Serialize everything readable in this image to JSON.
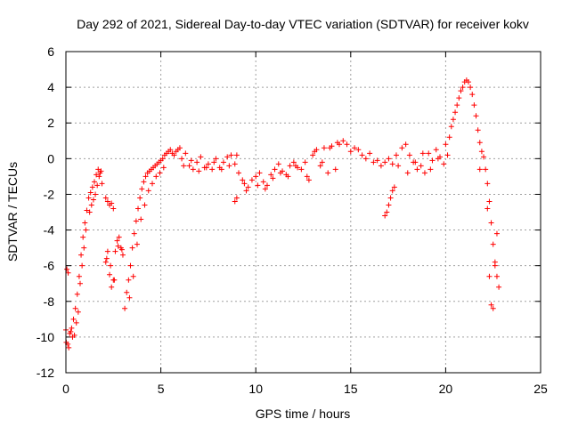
{
  "chart_data": {
    "type": "scatter",
    "title": "Day 292 of 2021, Sidereal Day-to-day VTEC variation (SDTVAR) for receiver kokv",
    "xlabel": "GPS time / hours",
    "ylabel": "SDTVAR / TECUs",
    "xlim": [
      0,
      25
    ],
    "ylim": [
      -12,
      6
    ],
    "xticks": [
      0,
      5,
      10,
      15,
      20,
      25
    ],
    "yticks": [
      -12,
      -10,
      -8,
      -6,
      -4,
      -2,
      0,
      2,
      4,
      6
    ],
    "grid": true,
    "marker": "plus",
    "series": [
      {
        "name": "SDTVAR",
        "color": "#ff0000",
        "x": [
          0.0,
          0.1,
          0.2,
          0.3,
          0.4,
          0.5,
          0.6,
          0.7,
          0.8,
          0.9,
          1.0,
          1.1,
          1.2,
          1.3,
          1.4,
          1.5,
          1.6,
          1.7,
          1.8,
          1.9,
          0.05,
          0.15,
          0.45,
          0.55,
          0.65,
          0.95,
          1.05,
          1.35,
          1.55,
          1.75,
          0.35,
          0.75,
          0.25,
          0.85,
          1.25,
          1.45,
          1.65,
          1.85,
          0.02,
          0.12,
          2.1,
          2.2,
          2.3,
          2.4,
          2.5,
          2.1,
          2.2,
          2.3,
          2.4,
          2.5,
          2.6,
          2.7,
          2.8,
          2.9,
          3.0,
          2.15,
          2.35,
          2.55,
          2.75,
          2.95,
          3.1,
          3.2,
          3.3,
          3.4,
          3.5,
          3.6,
          3.7,
          3.8,
          3.9,
          4.0,
          4.1,
          4.2,
          4.3,
          4.4,
          4.5,
          4.6,
          4.7,
          4.8,
          4.9,
          5.0,
          5.1,
          5.2,
          5.3,
          5.4,
          5.5,
          5.6,
          5.7,
          5.8,
          5.9,
          6.0,
          3.35,
          3.55,
          3.75,
          3.95,
          4.15,
          4.35,
          4.55,
          4.75,
          4.95,
          5.15,
          6.1,
          6.3,
          6.5,
          6.7,
          6.9,
          7.1,
          7.3,
          7.5,
          7.7,
          7.9,
          8.1,
          8.3,
          8.5,
          8.7,
          8.9,
          9.1,
          9.3,
          6.2,
          6.6,
          7.0,
          7.4,
          7.8,
          8.2,
          8.6,
          9.0,
          9.4,
          9.6,
          9.8,
          10.0,
          10.2,
          10.4,
          10.6,
          10.8,
          11.0,
          11.2,
          11.4,
          11.6,
          11.8,
          12.0,
          12.2,
          8.9,
          9.0,
          9.5,
          10.1,
          10.5,
          10.9,
          11.3,
          11.7,
          12.1,
          12.4,
          12.6,
          12.8,
          13.0,
          13.2,
          13.4,
          13.6,
          13.8,
          14.0,
          14.2,
          14.4,
          12.7,
          13.1,
          13.5,
          13.9,
          14.3,
          14.6,
          14.8,
          15.0,
          15.2,
          15.4,
          15.6,
          15.8,
          16.0,
          16.2,
          16.4,
          16.6,
          16.8,
          17.0,
          17.2,
          17.4,
          16.8,
          16.9,
          17.0,
          17.1,
          17.2,
          17.3,
          17.5,
          17.7,
          17.9,
          18.1,
          18.3,
          18.5,
          18.7,
          18.9,
          19.1,
          19.3,
          19.5,
          19.7,
          19.9,
          20.1,
          18.0,
          18.4,
          18.8,
          19.2,
          19.6,
          20.0,
          20.2,
          20.3,
          20.4,
          20.5,
          20.6,
          20.7,
          20.8,
          20.9,
          21.0,
          21.1,
          21.2,
          21.3,
          21.4,
          21.5,
          21.6,
          21.7,
          21.8,
          21.9,
          22.0,
          22.1,
          22.2,
          22.3,
          22.4,
          22.5,
          22.6,
          22.7,
          22.8,
          22.4,
          22.5,
          22.6,
          22.7,
          22.3,
          22.2,
          21.8
        ],
        "y": [
          -9.6,
          -10.4,
          -9.8,
          -9.5,
          -9.0,
          -8.4,
          -7.6,
          -6.6,
          -5.4,
          -4.4,
          -3.6,
          -2.9,
          -2.2,
          -1.9,
          -1.6,
          -1.3,
          -0.9,
          -0.6,
          -0.8,
          -1.4,
          -6.2,
          -10.6,
          -9.9,
          -9.2,
          -8.6,
          -5.0,
          -4.0,
          -2.6,
          -2.0,
          -1.0,
          -10.0,
          -7.0,
          -9.7,
          -6.0,
          -3.0,
          -2.3,
          -1.5,
          -0.7,
          -10.3,
          -6.4,
          -5.8,
          -5.2,
          -6.5,
          -7.2,
          -6.8,
          -2.2,
          -2.4,
          -2.6,
          -2.5,
          -2.8,
          -5.2,
          -4.6,
          -4.4,
          -5.0,
          -5.4,
          -5.6,
          -6.0,
          -6.8,
          -4.9,
          -5.1,
          -8.4,
          -7.5,
          -6.8,
          -6.0,
          -5.0,
          -4.2,
          -3.5,
          -2.8,
          -2.2,
          -1.7,
          -1.3,
          -1.0,
          -0.8,
          -0.7,
          -0.6,
          -0.5,
          -0.4,
          -0.3,
          -0.2,
          -0.1,
          0.0,
          0.2,
          0.3,
          0.4,
          0.5,
          0.3,
          0.2,
          0.4,
          0.5,
          0.6,
          -7.8,
          -6.6,
          -4.8,
          -3.4,
          -2.6,
          -1.8,
          -1.4,
          -1.0,
          -0.8,
          -0.5,
          0.0,
          0.3,
          -0.4,
          -0.6,
          -0.2,
          0.1,
          -0.5,
          -0.3,
          -0.6,
          0.0,
          -0.5,
          -0.2,
          0.1,
          0.2,
          -0.3,
          -0.8,
          -1.2,
          -0.4,
          -0.1,
          -0.7,
          -0.5,
          -0.2,
          -0.6,
          -0.4,
          0.2,
          -1.4,
          -1.6,
          -1.2,
          -1.0,
          -0.8,
          -1.3,
          -1.5,
          -0.9,
          -0.6,
          -0.3,
          -0.7,
          -0.9,
          -0.4,
          -0.2,
          -0.5,
          -2.4,
          -2.2,
          -1.8,
          -1.5,
          -1.7,
          -1.1,
          -0.8,
          -1.0,
          -0.4,
          -0.6,
          -0.2,
          -1.2,
          0.2,
          0.5,
          -0.4,
          0.6,
          -0.8,
          0.7,
          -0.6,
          0.8,
          -1.0,
          0.4,
          -0.2,
          0.6,
          0.9,
          1.0,
          0.8,
          0.4,
          0.6,
          0.5,
          0.2,
          0.0,
          0.3,
          -0.2,
          -0.1,
          -0.4,
          -0.2,
          0.0,
          -0.3,
          0.2,
          -3.2,
          -3.0,
          -2.6,
          -2.2,
          -1.8,
          -1.6,
          -0.4,
          0.6,
          0.8,
          0.2,
          -0.2,
          -0.6,
          -0.4,
          -0.8,
          0.3,
          -0.1,
          0.5,
          0.1,
          -0.3,
          0.2,
          -0.8,
          -0.2,
          0.3,
          -0.6,
          0.0,
          0.8,
          1.2,
          1.8,
          2.2,
          2.6,
          3.0,
          3.4,
          3.8,
          4.0,
          4.3,
          4.4,
          4.3,
          4.0,
          3.6,
          3.0,
          2.4,
          1.6,
          0.9,
          0.4,
          0.1,
          -0.6,
          -1.4,
          -2.4,
          -3.6,
          -4.8,
          -5.8,
          -6.6,
          -7.2,
          -8.2,
          -8.4,
          -6.0,
          -4.2,
          -6.6,
          -2.8,
          -0.6
        ]
      }
    ]
  }
}
